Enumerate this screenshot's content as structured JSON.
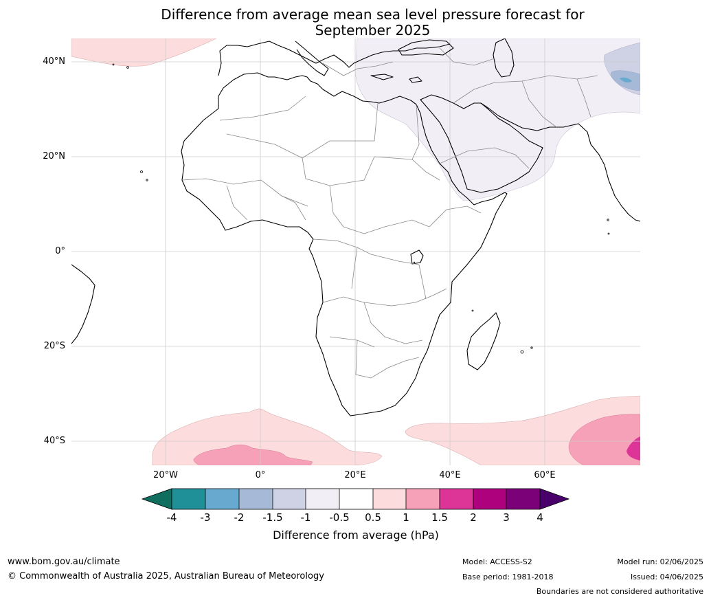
{
  "title_line1": "Difference from average mean sea level pressure forecast for",
  "title_line2": "September 2025",
  "lat_labels": [
    "40°N",
    "20°N",
    "0°",
    "20°S",
    "40°S"
  ],
  "lon_labels": [
    "20°W",
    "0°",
    "20°E",
    "40°E",
    "60°E"
  ],
  "colorbar": {
    "title": "Difference from average (hPa)",
    "ticks": [
      "-4",
      "-3",
      "-2",
      "-1.5",
      "-1",
      "-0.5",
      "0.5",
      "1",
      "1.5",
      "2",
      "3",
      "4"
    ],
    "colors": {
      "lt_minus4": "#0f6e5e",
      "m4_m3": "#1f8f98",
      "m3_m2": "#67a9cf",
      "m2_m15": "#a6b9d6",
      "m15_m1": "#cfd1e4",
      "m1_m05": "#f2eef5",
      "m05_05": "#ffffff",
      "p05_1": "#fcdcdc",
      "p1_15": "#f7a1b8",
      "p15_2": "#dd3497",
      "p2_3": "#ae017e",
      "p3_4": "#7a0177",
      "gt4": "#49006a"
    }
  },
  "footer": {
    "website": "www.bom.gov.au/climate",
    "copyright": "© Commonwealth of Australia 2025, Australian Bureau of Meteorology",
    "model": "Model: ACCESS-S2",
    "base_period": "Base period: 1981-2018",
    "model_run": "Model run: 02/06/2025",
    "issued": "Issued: 04/06/2025",
    "disclaimer": "Boundaries are not considered authoritative"
  }
}
